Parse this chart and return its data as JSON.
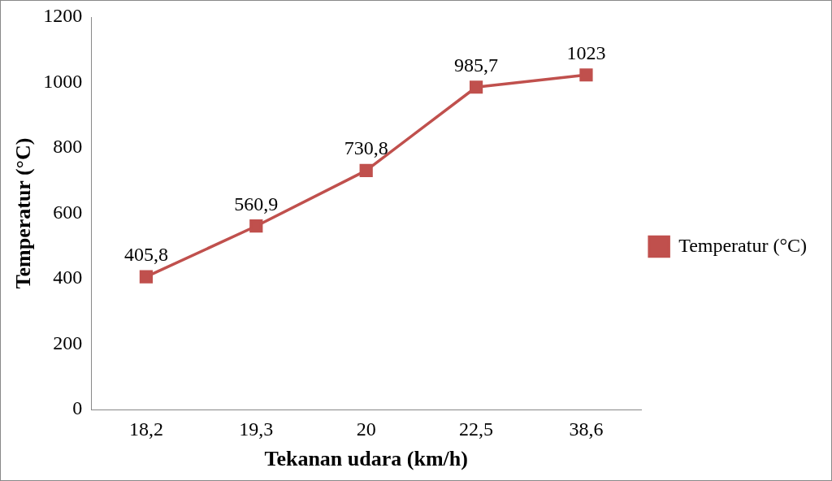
{
  "chart_data": {
    "type": "line",
    "xlabel": "Tekanan udara (km/h)",
    "ylabel": "Temperatur (°C)",
    "categories": [
      "18,2",
      "19,3",
      "20",
      "22,5",
      "38,6"
    ],
    "series": [
      {
        "name": "Temperatur (°C)",
        "color": "#c0504d",
        "values": [
          405.8,
          560.9,
          730.8,
          985.7,
          1023
        ],
        "value_labels": [
          "405,8",
          "560,9",
          "730,8",
          "985,7",
          "1023"
        ]
      }
    ],
    "ylim": [
      0,
      1200
    ],
    "yticks": [
      0,
      200,
      400,
      600,
      800,
      1000,
      1200
    ],
    "grid": false,
    "legend": "right",
    "marker": "square",
    "line_style": "solid"
  }
}
